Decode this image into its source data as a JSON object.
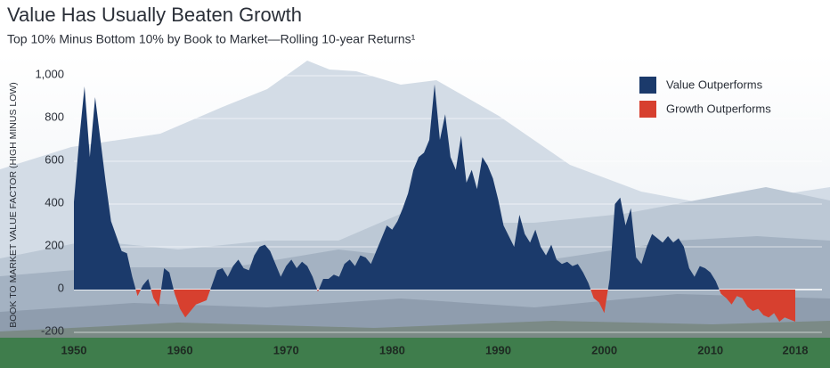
{
  "chart_data": {
    "type": "area",
    "title": "Value Has Usually Beaten Growth",
    "subtitle": "Top 10% Minus Bottom 10% by Book to Market—Rolling 10-year Returns¹",
    "y_label": "BOOK TO MARKET VALUE FACTOR (HIGH MINUS LOW)",
    "legend": [
      {
        "name": "Value Outperforms",
        "color": "#1b3a6b"
      },
      {
        "name": "Growth Outperforms",
        "color": "#d7402f"
      }
    ],
    "x": [
      1950,
      1950.5,
      1951,
      1951.5,
      1952,
      1952.5,
      1953,
      1953.5,
      1954,
      1954.5,
      1955,
      1955.5,
      1956,
      1956.5,
      1957,
      1957.5,
      1958,
      1958.5,
      1959,
      1959.5,
      1960,
      1960.5,
      1961,
      1961.5,
      1962,
      1962.5,
      1963,
      1963.5,
      1964,
      1964.5,
      1965,
      1965.5,
      1966,
      1966.5,
      1967,
      1967.5,
      1968,
      1968.5,
      1969,
      1969.5,
      1970,
      1970.5,
      1971,
      1971.5,
      1972,
      1972.5,
      1973,
      1973.5,
      1974,
      1974.5,
      1975,
      1975.5,
      1976,
      1976.5,
      1977,
      1977.5,
      1978,
      1978.5,
      1979,
      1979.5,
      1980,
      1980.5,
      1981,
      1981.5,
      1982,
      1982.5,
      1983,
      1983.5,
      1984,
      1984.5,
      1985,
      1985.5,
      1986,
      1986.5,
      1987,
      1987.5,
      1988,
      1988.5,
      1989,
      1989.5,
      1990,
      1990.5,
      1991,
      1991.5,
      1992,
      1992.5,
      1993,
      1993.5,
      1994,
      1994.5,
      1995,
      1995.5,
      1996,
      1996.5,
      1997,
      1997.5,
      1998,
      1998.5,
      1999,
      1999.5,
      2000,
      2000.5,
      2001,
      2001.5,
      2002,
      2002.5,
      2003,
      2003.5,
      2004,
      2004.5,
      2005,
      2005.5,
      2006,
      2006.5,
      2007,
      2007.5,
      2008,
      2008.5,
      2009,
      2009.5,
      2010,
      2010.5,
      2011,
      2011.5,
      2012,
      2012.5,
      2013,
      2013.5,
      2014,
      2014.5,
      2015,
      2015.5,
      2016,
      2016.5,
      2017,
      2017.5,
      2018
    ],
    "values": [
      410,
      700,
      950,
      620,
      900,
      700,
      500,
      320,
      250,
      180,
      170,
      60,
      -30,
      20,
      50,
      -40,
      -80,
      100,
      80,
      -20,
      -90,
      -130,
      -100,
      -70,
      -60,
      -50,
      20,
      90,
      100,
      60,
      110,
      140,
      100,
      90,
      160,
      200,
      210,
      180,
      120,
      60,
      110,
      140,
      100,
      130,
      110,
      60,
      -10,
      50,
      50,
      70,
      60,
      120,
      140,
      110,
      160,
      150,
      120,
      180,
      240,
      300,
      280,
      320,
      380,
      450,
      560,
      620,
      640,
      700,
      960,
      700,
      820,
      620,
      560,
      720,
      500,
      560,
      470,
      620,
      580,
      520,
      420,
      300,
      250,
      200,
      350,
      260,
      220,
      280,
      200,
      160,
      210,
      140,
      120,
      130,
      110,
      120,
      80,
      30,
      -40,
      -60,
      -110,
      50,
      400,
      430,
      300,
      380,
      150,
      120,
      200,
      260,
      240,
      220,
      250,
      220,
      240,
      200,
      100,
      60,
      110,
      100,
      80,
      40,
      -20,
      -40,
      -70,
      -30,
      -40,
      -80,
      -100,
      -90,
      -120,
      -130,
      -110,
      -150,
      -130,
      -140,
      -150
    ],
    "xlim": [
      1950,
      2018
    ],
    "xticks": [
      1950,
      1960,
      1970,
      1980,
      1990,
      2000,
      2010,
      2018
    ],
    "ylim": [
      -200,
      1000
    ],
    "yticks": [
      -200,
      0,
      200,
      400,
      600,
      800,
      {
        "value": 1000,
        "label": "1,000"
      }
    ],
    "grid": true
  }
}
